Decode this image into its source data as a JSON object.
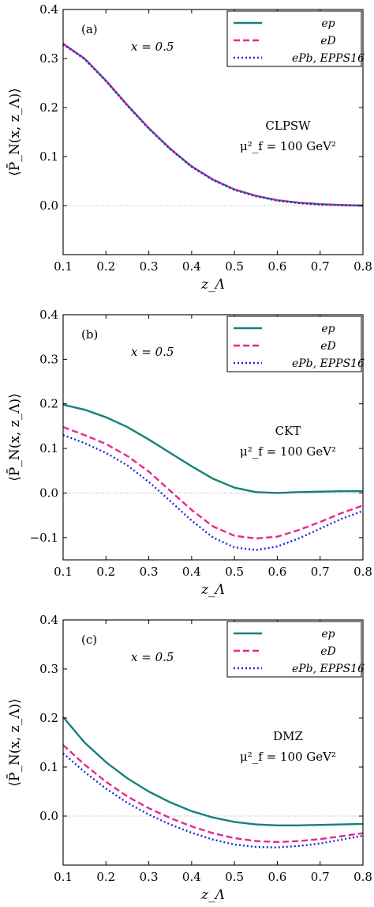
{
  "chart_data": [
    {
      "type": "line",
      "panel_label": "(a)",
      "xlabel": "z_Λ",
      "ylabel": "⟨P̄_N(x, z_Λ)⟩",
      "xlim": [
        0.1,
        0.8
      ],
      "ylim": [
        -0.1,
        0.4
      ],
      "x_ticks": [
        "0.1",
        "0.2",
        "0.3",
        "0.4",
        "0.5",
        "0.6",
        "0.7",
        "0.8"
      ],
      "y_ticks": [
        "0.0",
        "0.1",
        "0.2",
        "0.3",
        "0.4"
      ],
      "y_tick_values": [
        0.0,
        0.1,
        0.2,
        0.3,
        0.4
      ],
      "annotation_x": "x = 0.5",
      "annotation_model": "CLPSW",
      "annotation_scale": "μ²_f = 100 GeV²",
      "legend_position": "top-right",
      "legend": [
        "ep",
        "eD",
        "ePb, EPPS16"
      ],
      "zero_line": true,
      "x": [
        0.1,
        0.15,
        0.2,
        0.25,
        0.3,
        0.35,
        0.4,
        0.45,
        0.5,
        0.55,
        0.6,
        0.65,
        0.7,
        0.75,
        0.8
      ],
      "series": [
        {
          "name": "ep",
          "color": "#16807c",
          "dash": "solid",
          "values": [
            0.33,
            0.3,
            0.255,
            0.205,
            0.158,
            0.116,
            0.08,
            0.053,
            0.033,
            0.02,
            0.011,
            0.006,
            0.003,
            0.001,
            0.0
          ]
        },
        {
          "name": "eD",
          "color": "#e8278d",
          "dash": "dashed",
          "values": [
            0.33,
            0.3,
            0.255,
            0.205,
            0.158,
            0.116,
            0.08,
            0.053,
            0.033,
            0.02,
            0.011,
            0.006,
            0.003,
            0.001,
            0.0
          ]
        },
        {
          "name": "ePb, EPPS16",
          "color": "#1b2be0",
          "dash": "dotted",
          "values": [
            0.329,
            0.299,
            0.254,
            0.204,
            0.157,
            0.115,
            0.079,
            0.052,
            0.032,
            0.019,
            0.01,
            0.005,
            0.002,
            0.001,
            0.0
          ]
        }
      ]
    },
    {
      "type": "line",
      "panel_label": "(b)",
      "xlabel": "z_Λ",
      "ylabel": "⟨P̄_N(x, z_Λ)⟩",
      "xlim": [
        0.1,
        0.8
      ],
      "ylim": [
        -0.15,
        0.4
      ],
      "x_ticks": [
        "0.1",
        "0.2",
        "0.3",
        "0.4",
        "0.5",
        "0.6",
        "0.7",
        "0.8"
      ],
      "y_ticks": [
        "−0.1",
        "0.0",
        "0.1",
        "0.2",
        "0.3",
        "0.4"
      ],
      "y_tick_values": [
        -0.1,
        0.0,
        0.1,
        0.2,
        0.3,
        0.4
      ],
      "annotation_x": "x = 0.5",
      "annotation_model": "CKT",
      "annotation_scale": "μ²_f = 100 GeV²",
      "legend_position": "top-right",
      "legend": [
        "ep",
        "eD",
        "ePb, EPPS16"
      ],
      "zero_line": true,
      "x": [
        0.1,
        0.15,
        0.2,
        0.25,
        0.3,
        0.35,
        0.4,
        0.45,
        0.5,
        0.55,
        0.6,
        0.65,
        0.7,
        0.75,
        0.8
      ],
      "series": [
        {
          "name": "ep",
          "color": "#16807c",
          "dash": "solid",
          "values": [
            0.198,
            0.187,
            0.17,
            0.148,
            0.12,
            0.09,
            0.06,
            0.032,
            0.012,
            0.002,
            0.0,
            0.002,
            0.003,
            0.004,
            0.004
          ]
        },
        {
          "name": "eD",
          "color": "#e8278d",
          "dash": "dashed",
          "values": [
            0.148,
            0.13,
            0.11,
            0.083,
            0.048,
            0.005,
            -0.038,
            -0.075,
            -0.096,
            -0.102,
            -0.098,
            -0.083,
            -0.065,
            -0.045,
            -0.028
          ]
        },
        {
          "name": "ePb, EPPS16",
          "color": "#1b2be0",
          "dash": "dotted",
          "values": [
            0.13,
            0.112,
            0.09,
            0.062,
            0.025,
            -0.018,
            -0.062,
            -0.1,
            -0.122,
            -0.128,
            -0.12,
            -0.102,
            -0.08,
            -0.058,
            -0.04
          ]
        }
      ]
    },
    {
      "type": "line",
      "panel_label": "(c)",
      "xlabel": "z_Λ",
      "ylabel": "⟨P̄_N(x, z_Λ)⟩",
      "xlim": [
        0.1,
        0.8
      ],
      "ylim": [
        -0.1,
        0.4
      ],
      "x_ticks": [
        "0.1",
        "0.2",
        "0.3",
        "0.4",
        "0.5",
        "0.6",
        "0.7",
        "0.8"
      ],
      "y_ticks": [
        "0.0",
        "0.1",
        "0.2",
        "0.3",
        "0.4"
      ],
      "y_tick_values": [
        0.0,
        0.1,
        0.2,
        0.3,
        0.4
      ],
      "annotation_x": "x = 0.5",
      "annotation_model": "DMZ",
      "annotation_scale": "μ²_f = 100 GeV²",
      "legend_position": "top-right",
      "legend": [
        "ep",
        "eD",
        "ePb, EPPS16"
      ],
      "zero_line": true,
      "x": [
        0.1,
        0.15,
        0.2,
        0.25,
        0.3,
        0.35,
        0.4,
        0.45,
        0.5,
        0.55,
        0.6,
        0.65,
        0.7,
        0.75,
        0.8
      ],
      "series": [
        {
          "name": "ep",
          "color": "#16807c",
          "dash": "solid",
          "values": [
            0.202,
            0.15,
            0.11,
            0.077,
            0.05,
            0.028,
            0.01,
            -0.003,
            -0.012,
            -0.017,
            -0.019,
            -0.019,
            -0.018,
            -0.017,
            -0.016
          ]
        },
        {
          "name": "eD",
          "color": "#e8278d",
          "dash": "dashed",
          "values": [
            0.145,
            0.105,
            0.07,
            0.04,
            0.016,
            -0.004,
            -0.021,
            -0.035,
            -0.045,
            -0.051,
            -0.053,
            -0.051,
            -0.047,
            -0.041,
            -0.035
          ]
        },
        {
          "name": "ePb, EPPS16",
          "color": "#1b2be0",
          "dash": "dotted",
          "values": [
            0.128,
            0.09,
            0.056,
            0.027,
            0.003,
            -0.017,
            -0.034,
            -0.048,
            -0.058,
            -0.063,
            -0.064,
            -0.061,
            -0.056,
            -0.048,
            -0.04
          ]
        }
      ]
    }
  ]
}
